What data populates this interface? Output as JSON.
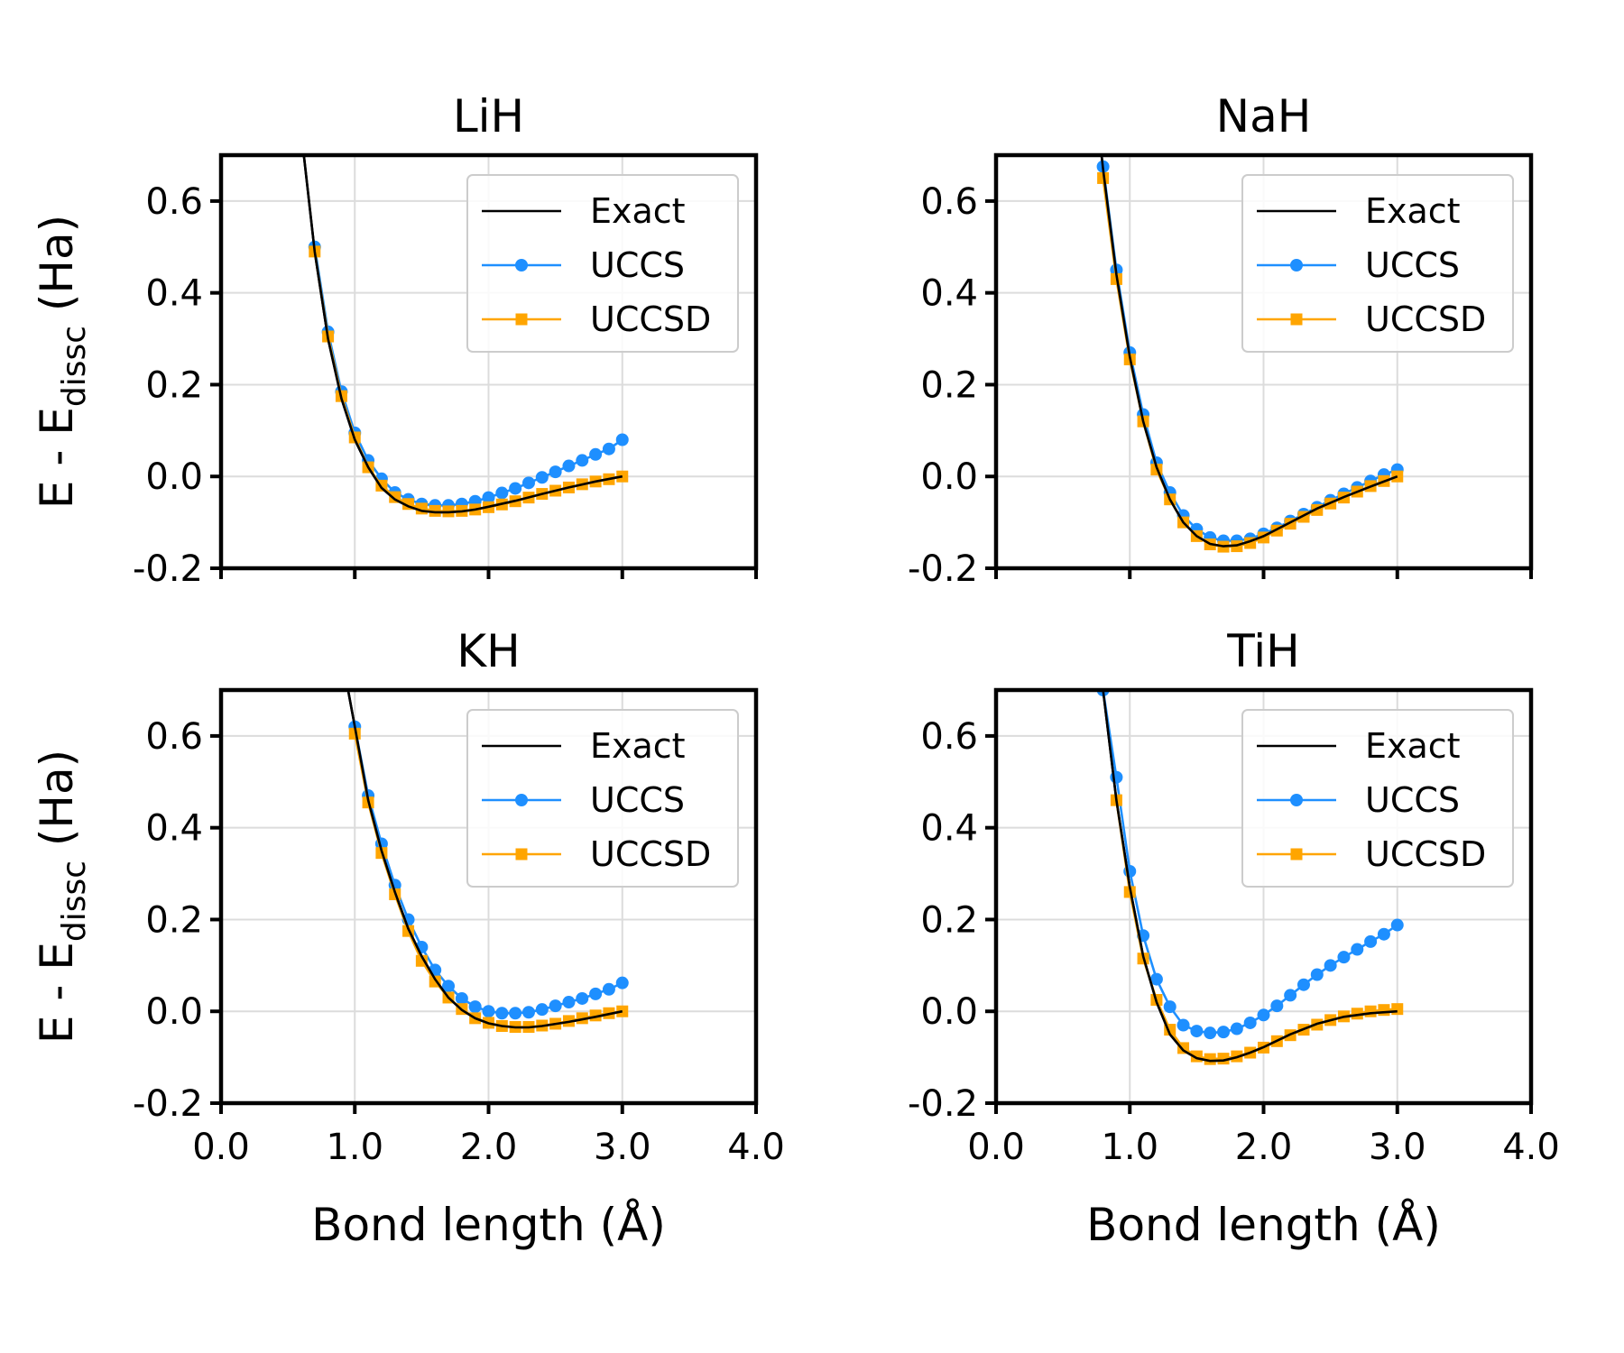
{
  "chart_data": [
    {
      "type": "line",
      "title": "LiH",
      "xlabel": "",
      "ylabel": "E - E",
      "ylabel_subscript": "dissc",
      "ylabel_unit": "(Ha)",
      "xlim": [
        0,
        4
      ],
      "ylim": [
        -0.2,
        0.7
      ],
      "xticks": [
        "0.0",
        "1.0",
        "2.0",
        "3.0",
        "4.0"
      ],
      "yticks": [
        "-0.2",
        "0.0",
        "0.2",
        "0.4",
        "0.6"
      ],
      "show_xtick_labels": false,
      "grid": true,
      "legend_position": "top-right",
      "series": [
        {
          "name": "Exact",
          "color": "#000000",
          "marker": "none",
          "x": [
            0.6,
            0.7,
            0.8,
            0.9,
            1.0,
            1.1,
            1.2,
            1.3,
            1.4,
            1.5,
            1.6,
            1.7,
            1.8,
            1.9,
            2.0,
            2.2,
            2.4,
            2.6,
            2.8,
            3.0
          ],
          "y": [
            0.75,
            0.49,
            0.3,
            0.17,
            0.08,
            0.02,
            -0.025,
            -0.05,
            -0.065,
            -0.075,
            -0.078,
            -0.078,
            -0.076,
            -0.072,
            -0.066,
            -0.053,
            -0.038,
            -0.024,
            -0.011,
            0.0
          ]
        },
        {
          "name": "UCCS",
          "color": "#1e8fff",
          "marker": "circle",
          "x": [
            0.7,
            0.8,
            0.9,
            1.0,
            1.1,
            1.2,
            1.3,
            1.4,
            1.5,
            1.6,
            1.7,
            1.8,
            1.9,
            2.0,
            2.1,
            2.2,
            2.3,
            2.4,
            2.5,
            2.6,
            2.7,
            2.8,
            2.9,
            3.0
          ],
          "y": [
            0.5,
            0.315,
            0.185,
            0.095,
            0.035,
            -0.005,
            -0.035,
            -0.05,
            -0.06,
            -0.063,
            -0.063,
            -0.06,
            -0.054,
            -0.046,
            -0.036,
            -0.026,
            -0.014,
            -0.002,
            0.01,
            0.023,
            0.035,
            0.048,
            0.06,
            0.08
          ]
        },
        {
          "name": "UCCSD",
          "color": "#ffa500",
          "marker": "square",
          "x": [
            0.7,
            0.8,
            0.9,
            1.0,
            1.1,
            1.2,
            1.3,
            1.4,
            1.5,
            1.6,
            1.7,
            1.8,
            1.9,
            2.0,
            2.1,
            2.2,
            2.3,
            2.4,
            2.5,
            2.6,
            2.7,
            2.8,
            2.9,
            3.0
          ],
          "y": [
            0.49,
            0.305,
            0.175,
            0.085,
            0.02,
            -0.02,
            -0.045,
            -0.06,
            -0.07,
            -0.075,
            -0.076,
            -0.075,
            -0.072,
            -0.067,
            -0.061,
            -0.054,
            -0.046,
            -0.038,
            -0.031,
            -0.024,
            -0.017,
            -0.011,
            -0.006,
            0.0
          ]
        }
      ]
    },
    {
      "type": "line",
      "title": "NaH",
      "xlabel": "",
      "ylabel": "",
      "xlim": [
        0,
        4
      ],
      "ylim": [
        -0.2,
        0.7
      ],
      "xticks": [
        "0.0",
        "1.0",
        "2.0",
        "3.0",
        "4.0"
      ],
      "yticks": [
        "-0.2",
        "0.0",
        "0.2",
        "0.4",
        "0.6"
      ],
      "show_xtick_labels": false,
      "grid": true,
      "legend_position": "top-right",
      "series": [
        {
          "name": "Exact",
          "color": "#000000",
          "marker": "none",
          "x": [
            0.77,
            0.8,
            0.9,
            1.0,
            1.1,
            1.2,
            1.3,
            1.4,
            1.5,
            1.6,
            1.7,
            1.8,
            1.9,
            2.0,
            2.2,
            2.4,
            2.6,
            2.8,
            3.0
          ],
          "y": [
            0.75,
            0.67,
            0.44,
            0.26,
            0.12,
            0.02,
            -0.05,
            -0.1,
            -0.13,
            -0.147,
            -0.152,
            -0.15,
            -0.141,
            -0.13,
            -0.1,
            -0.07,
            -0.045,
            -0.022,
            0.0
          ]
        },
        {
          "name": "UCCS",
          "color": "#1e8fff",
          "marker": "circle",
          "x": [
            0.8,
            0.9,
            1.0,
            1.1,
            1.2,
            1.3,
            1.4,
            1.5,
            1.6,
            1.7,
            1.8,
            1.9,
            2.0,
            2.1,
            2.2,
            2.3,
            2.4,
            2.5,
            2.6,
            2.7,
            2.8,
            2.9,
            3.0
          ],
          "y": [
            0.675,
            0.45,
            0.27,
            0.135,
            0.03,
            -0.035,
            -0.085,
            -0.115,
            -0.133,
            -0.14,
            -0.14,
            -0.136,
            -0.125,
            -0.112,
            -0.097,
            -0.082,
            -0.067,
            -0.052,
            -0.038,
            -0.024,
            -0.01,
            0.004,
            0.015
          ]
        },
        {
          "name": "UCCSD",
          "color": "#ffa500",
          "marker": "square",
          "x": [
            0.8,
            0.9,
            1.0,
            1.1,
            1.2,
            1.3,
            1.4,
            1.5,
            1.6,
            1.7,
            1.8,
            1.9,
            2.0,
            2.1,
            2.2,
            2.3,
            2.4,
            2.5,
            2.6,
            2.7,
            2.8,
            2.9,
            3.0
          ],
          "y": [
            0.65,
            0.43,
            0.255,
            0.12,
            0.015,
            -0.05,
            -0.1,
            -0.13,
            -0.148,
            -0.153,
            -0.152,
            -0.145,
            -0.133,
            -0.118,
            -0.103,
            -0.088,
            -0.073,
            -0.059,
            -0.046,
            -0.033,
            -0.021,
            -0.01,
            0.0
          ]
        }
      ]
    },
    {
      "type": "line",
      "title": "KH",
      "xlabel": "Bond length (Å)",
      "ylabel": "E - E",
      "ylabel_subscript": "dissc",
      "ylabel_unit": "(Ha)",
      "xlim": [
        0,
        4
      ],
      "ylim": [
        -0.2,
        0.7
      ],
      "xticks": [
        "0.0",
        "1.0",
        "2.0",
        "3.0",
        "4.0"
      ],
      "yticks": [
        "-0.2",
        "0.0",
        "0.2",
        "0.4",
        "0.6"
      ],
      "show_xtick_labels": true,
      "grid": true,
      "legend_position": "top-right",
      "series": [
        {
          "name": "Exact",
          "color": "#000000",
          "marker": "none",
          "x": [
            0.95,
            1.0,
            1.1,
            1.2,
            1.3,
            1.4,
            1.5,
            1.6,
            1.7,
            1.8,
            1.9,
            2.0,
            2.1,
            2.2,
            2.3,
            2.4,
            2.6,
            2.8,
            3.0
          ],
          "y": [
            0.7,
            0.62,
            0.46,
            0.35,
            0.26,
            0.18,
            0.12,
            0.07,
            0.03,
            0.003,
            -0.015,
            -0.026,
            -0.032,
            -0.035,
            -0.035,
            -0.032,
            -0.023,
            -0.012,
            0.0
          ]
        },
        {
          "name": "UCCS",
          "color": "#1e8fff",
          "marker": "circle",
          "x": [
            1.0,
            1.1,
            1.2,
            1.3,
            1.4,
            1.5,
            1.6,
            1.7,
            1.8,
            1.9,
            2.0,
            2.1,
            2.2,
            2.3,
            2.4,
            2.5,
            2.6,
            2.7,
            2.8,
            2.9,
            3.0
          ],
          "y": [
            0.62,
            0.47,
            0.365,
            0.275,
            0.2,
            0.14,
            0.09,
            0.055,
            0.028,
            0.01,
            0.0,
            -0.004,
            -0.004,
            -0.002,
            0.004,
            0.012,
            0.02,
            0.028,
            0.038,
            0.048,
            0.062
          ]
        },
        {
          "name": "UCCSD",
          "color": "#ffa500",
          "marker": "square",
          "x": [
            1.0,
            1.1,
            1.2,
            1.3,
            1.4,
            1.5,
            1.6,
            1.7,
            1.8,
            1.9,
            2.0,
            2.1,
            2.2,
            2.3,
            2.4,
            2.5,
            2.6,
            2.7,
            2.8,
            2.9,
            3.0
          ],
          "y": [
            0.605,
            0.455,
            0.345,
            0.255,
            0.175,
            0.11,
            0.065,
            0.03,
            0.005,
            -0.015,
            -0.025,
            -0.032,
            -0.034,
            -0.034,
            -0.031,
            -0.027,
            -0.021,
            -0.015,
            -0.009,
            -0.004,
            0.0
          ]
        }
      ]
    },
    {
      "type": "line",
      "title": "TiH",
      "xlabel": "Bond length (Å)",
      "ylabel": "",
      "xlim": [
        0,
        4
      ],
      "ylim": [
        -0.2,
        0.7
      ],
      "xticks": [
        "0.0",
        "1.0",
        "2.0",
        "3.0",
        "4.0"
      ],
      "yticks": [
        "-0.2",
        "0.0",
        "0.2",
        "0.4",
        "0.6"
      ],
      "show_xtick_labels": true,
      "grid": true,
      "legend_position": "top-right",
      "series": [
        {
          "name": "Exact",
          "color": "#000000",
          "marker": "none",
          "x": [
            0.8,
            0.85,
            0.9,
            1.0,
            1.1,
            1.2,
            1.3,
            1.4,
            1.5,
            1.6,
            1.7,
            1.8,
            1.9,
            2.0,
            2.2,
            2.4,
            2.6,
            2.8,
            3.0
          ],
          "y": [
            0.7,
            0.58,
            0.46,
            0.27,
            0.12,
            0.02,
            -0.05,
            -0.085,
            -0.102,
            -0.108,
            -0.107,
            -0.1,
            -0.09,
            -0.078,
            -0.05,
            -0.027,
            -0.012,
            -0.004,
            0.0
          ]
        },
        {
          "name": "UCCS",
          "color": "#1e8fff",
          "marker": "circle",
          "x": [
            0.8,
            0.9,
            1.0,
            1.1,
            1.2,
            1.3,
            1.4,
            1.5,
            1.6,
            1.7,
            1.8,
            1.9,
            2.0,
            2.1,
            2.2,
            2.3,
            2.4,
            2.5,
            2.6,
            2.7,
            2.8,
            2.9,
            3.0
          ],
          "y": [
            0.7,
            0.51,
            0.305,
            0.165,
            0.07,
            0.01,
            -0.03,
            -0.043,
            -0.047,
            -0.045,
            -0.038,
            -0.025,
            -0.008,
            0.012,
            0.035,
            0.058,
            0.08,
            0.1,
            0.118,
            0.135,
            0.152,
            0.168,
            0.188
          ]
        },
        {
          "name": "UCCSD",
          "color": "#ffa500",
          "marker": "square",
          "x": [
            0.9,
            1.0,
            1.1,
            1.2,
            1.3,
            1.4,
            1.5,
            1.6,
            1.7,
            1.8,
            1.9,
            2.0,
            2.1,
            2.2,
            2.3,
            2.4,
            2.5,
            2.6,
            2.7,
            2.8,
            2.9,
            3.0
          ],
          "y": [
            0.46,
            0.26,
            0.115,
            0.025,
            -0.04,
            -0.08,
            -0.098,
            -0.104,
            -0.103,
            -0.098,
            -0.09,
            -0.079,
            -0.065,
            -0.052,
            -0.04,
            -0.029,
            -0.019,
            -0.011,
            -0.005,
            0.0,
            0.003,
            0.005
          ]
        }
      ]
    }
  ]
}
